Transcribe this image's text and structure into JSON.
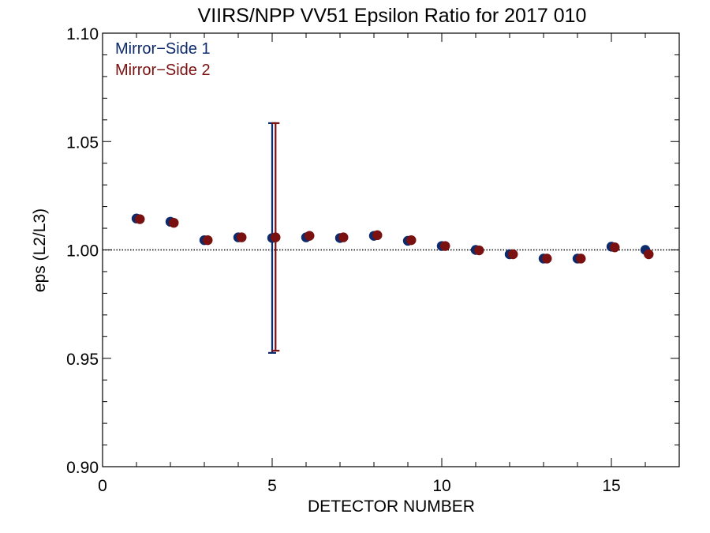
{
  "chart_data": {
    "type": "scatter",
    "title": "VIIRS/NPP VV51 Epsilon Ratio for 2017 010",
    "xlabel": "DETECTOR NUMBER",
    "ylabel": "eps (L2/L3)",
    "xlim": [
      0,
      17
    ],
    "ylim": [
      0.9,
      1.1
    ],
    "xticks": [
      0,
      5,
      10,
      15
    ],
    "yticks": [
      0.9,
      0.95,
      1.0,
      1.05,
      1.1
    ],
    "xtick_labels": [
      "0",
      "5",
      "10",
      "15"
    ],
    "ytick_labels": [
      "0.90",
      "0.95",
      "1.00",
      "1.05",
      "1.10"
    ],
    "reference_line": 1.0,
    "legend_position": "top-left",
    "series": [
      {
        "name": "Mirror−Side 1",
        "color": "#0d2a6b",
        "x": [
          1,
          2,
          3,
          4,
          5,
          6,
          7,
          8,
          9,
          10,
          11,
          12,
          13,
          14,
          15,
          16
        ],
        "y": [
          1.0145,
          1.013,
          1.0045,
          1.0058,
          1.0055,
          1.0058,
          1.0055,
          1.0065,
          1.0042,
          1.0018,
          1.0,
          0.998,
          0.996,
          0.996,
          1.0015,
          1.0
        ],
        "error_bars": [
          {
            "x": 5,
            "low": 0.9525,
            "high": 1.0585
          }
        ]
      },
      {
        "name": "Mirror−Side 2",
        "color": "#7a1010",
        "x": [
          1.1,
          2.1,
          3.1,
          4.1,
          5.1,
          6.1,
          7.1,
          8.1,
          9.1,
          10.1,
          11.1,
          12.1,
          13.1,
          14.1,
          15.1,
          16.1
        ],
        "y": [
          1.0142,
          1.0125,
          1.0045,
          1.0058,
          1.0058,
          1.0065,
          1.0058,
          1.0068,
          1.0045,
          1.0018,
          0.9998,
          0.998,
          0.996,
          0.996,
          1.0012,
          0.998
        ],
        "error_bars": [
          {
            "x": 5.1,
            "low": 0.9535,
            "high": 1.0585
          }
        ]
      }
    ]
  }
}
